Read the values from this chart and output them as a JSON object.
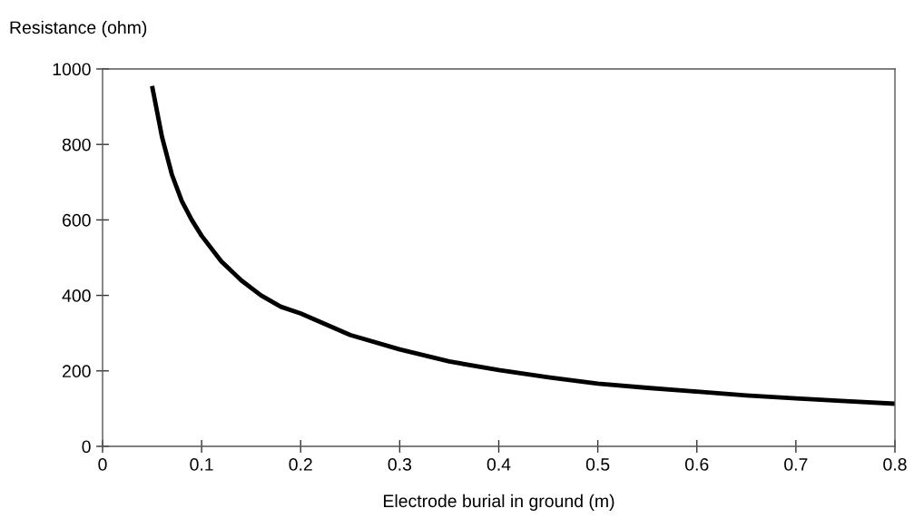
{
  "chart_data": {
    "type": "line",
    "xlabel": "Electrode burial in ground (m)",
    "ylabel": "Resistance (ohm)",
    "x": [
      0.05,
      0.06,
      0.07,
      0.08,
      0.09,
      0.1,
      0.12,
      0.14,
      0.16,
      0.18,
      0.2,
      0.25,
      0.3,
      0.35,
      0.4,
      0.45,
      0.5,
      0.55,
      0.6,
      0.65,
      0.7,
      0.75,
      0.8
    ],
    "series": [
      {
        "color": "#000000",
        "values": [
          955,
          820,
          720,
          650,
          600,
          558,
          490,
          440,
          400,
          370,
          352,
          295,
          257,
          225,
          202,
          183,
          166,
          155,
          145,
          135,
          127,
          120,
          113
        ]
      }
    ],
    "xlim": [
      0,
      0.8
    ],
    "xticks": [
      0,
      0.1,
      0.2,
      0.3,
      0.4,
      0.5,
      0.6,
      0.7,
      0.8
    ],
    "ylim": [
      0,
      1000
    ],
    "yticks": [
      0,
      200,
      400,
      600,
      800,
      1000
    ],
    "grid": false,
    "legend": false,
    "marker": "none",
    "line_style": "solid"
  }
}
